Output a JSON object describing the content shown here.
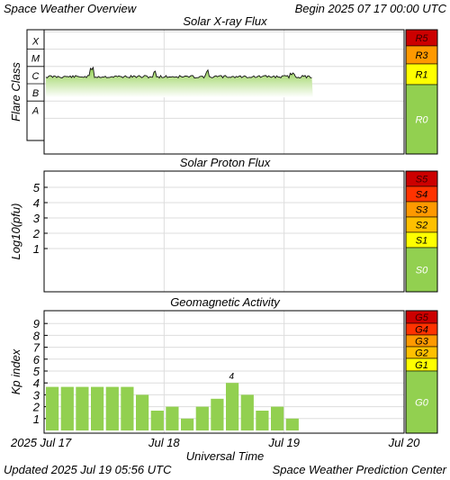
{
  "header": {
    "title": "Space Weather Overview",
    "begin": "Begin 2025 07 17 00:00 UTC"
  },
  "footer": {
    "updated": "Updated 2025 Jul 19 05:56 UTC",
    "center": "Space Weather Prediction Center"
  },
  "colors": {
    "green": "#92d050",
    "yellow": "#ffff00",
    "gold": "#ffc000",
    "orange": "#ff9900",
    "red_orange": "#ff3300",
    "red": "#cc0000",
    "dark_red": "#990000",
    "bar_green": "#92d050",
    "xray_fill_top": "#92d050",
    "xray_fill_bottom": "#ffffff"
  },
  "chart_data": [
    {
      "type": "area",
      "title": "Solar X-ray Flux",
      "ylabel": "Flare Class",
      "class_labels": [
        "X",
        "M",
        "C",
        "B",
        "A"
      ],
      "x_range_days": [
        0,
        3
      ],
      "data_end_day": 2.24,
      "level_class": "C",
      "level_fraction_of_decade": 0.2,
      "scale": {
        "labels": [
          "R5",
          "R3",
          "R1",
          "R0"
        ],
        "colors": [
          "#cc0000",
          "#ff9900",
          "#ffff00",
          "#92d050"
        ]
      }
    },
    {
      "type": "area",
      "title": "Solar Proton Flux",
      "ylabel": "Log10(pfu)",
      "yticks": [
        "5",
        "4",
        "3",
        "2",
        "1"
      ],
      "ylim": [
        -1.6,
        6.0
      ],
      "x_range_days": [
        0,
        3
      ],
      "data_end_day": 2.24,
      "level": -0.2,
      "scale": {
        "labels": [
          "S5",
          "S4",
          "S3",
          "S2",
          "S1",
          "S0"
        ],
        "colors": [
          "#cc0000",
          "#ff3300",
          "#ff9900",
          "#ffc000",
          "#ffff00",
          "#92d050"
        ]
      }
    },
    {
      "type": "bar",
      "title": "Geomagnetic Activity",
      "ylabel": "Kp index",
      "yticks": [
        "9",
        "8",
        "7",
        "6",
        "5",
        "4",
        "3",
        "2",
        "1"
      ],
      "ylim": [
        0,
        10
      ],
      "x": [
        0,
        0.125,
        0.25,
        0.375,
        0.5,
        0.625,
        0.75,
        0.875,
        1.0,
        1.125,
        1.25,
        1.375,
        1.5,
        1.625,
        1.75,
        1.875,
        2.0,
        2.125
      ],
      "values": [
        3.67,
        3.67,
        3.67,
        3.67,
        3.67,
        3.67,
        3.0,
        1.67,
        2.0,
        1.0,
        2.0,
        2.67,
        4.0,
        3.0,
        1.67,
        2.0,
        1.0,
        0
      ],
      "annotation": {
        "label": "4",
        "index": 12
      },
      "scale": {
        "labels": [
          "G5",
          "G4",
          "G3",
          "G2",
          "G1",
          "G0"
        ],
        "colors": [
          "#cc0000",
          "#ff3300",
          "#ff9900",
          "#ffc000",
          "#ffff00",
          "#92d050"
        ]
      }
    }
  ],
  "xaxis": {
    "title": "Universal Time",
    "tick_labels": [
      "2025 Jul 17",
      "Jul 18",
      "Jul 19",
      "Jul 20"
    ],
    "tick_days": [
      0,
      1,
      2,
      3
    ]
  }
}
